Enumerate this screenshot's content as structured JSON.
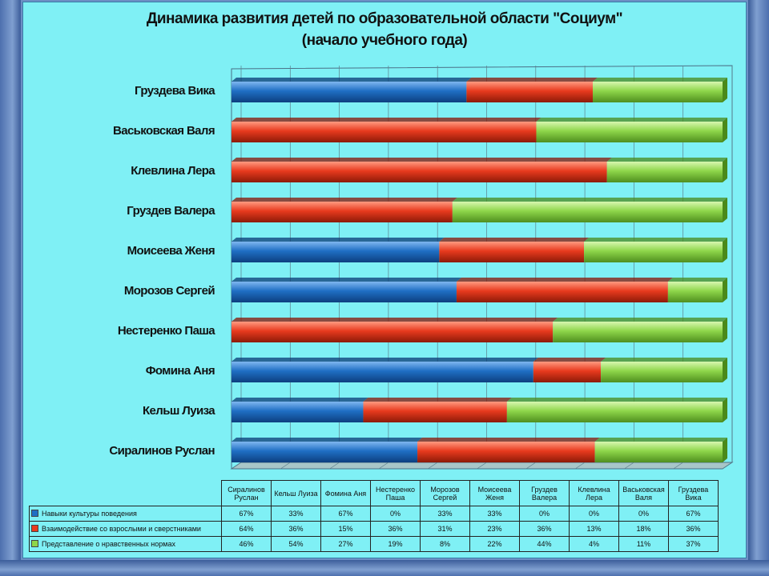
{
  "title": {
    "line1": "Динамика развития детей по образовательной области \"Социум\"",
    "line2": "(начало учебного года)"
  },
  "chart_data": {
    "type": "bar",
    "orientation": "horizontal",
    "stacked": "percent",
    "style": "3d",
    "categories": [
      "Сиралинов Руслан",
      "Кельш Луиза",
      "Фомина Аня",
      "Нестеренко Паша",
      "Морозов Сергей",
      "Моисеева Женя",
      "Груздев Валера",
      "Клевлина Лера",
      "Васьковская Валя",
      "Груздева  Вика"
    ],
    "category_labels": [
      "Сиралинов Руслан",
      "Кельш Луиза",
      "Фомина Аня",
      "Нестеренко Паша",
      "Морозов Сергей",
      "Моисеева Женя",
      "Груздев Валера",
      "Клевлина Лера",
      "Васьковская Валя",
      "Груздева  Вика"
    ],
    "table_headers": [
      "Сиралинов Руслан",
      "Кельш Луиза",
      "Фомина Аня",
      "Нестеренко Паша",
      "Морозов Сергей",
      "Моисеева Женя",
      "Груздев Валера",
      "Клевлина Лера",
      "Васьковская Валя",
      "Груздева Вика"
    ],
    "series": [
      {
        "name": "Навыки культуры поведения",
        "color": "#1f6fc4",
        "values": [
          67,
          33,
          67,
          0,
          33,
          33,
          0,
          0,
          0,
          67
        ],
        "labels": [
          "67%",
          "33%",
          "67%",
          "0%",
          "33%",
          "33%",
          "0%",
          "0%",
          "0%",
          "67%"
        ]
      },
      {
        "name": "Взаимодействие со взрослыми и сверстниками",
        "color": "#e83a1e",
        "values": [
          64,
          36,
          15,
          36,
          31,
          23,
          36,
          13,
          18,
          36
        ],
        "labels": [
          "64%",
          "36%",
          "15%",
          "36%",
          "31%",
          "23%",
          "36%",
          "13%",
          "18%",
          "36%"
        ]
      },
      {
        "name": "Представление о нравственных нормах",
        "color": "#8ed64a",
        "values": [
          46,
          54,
          27,
          19,
          8,
          22,
          44,
          4,
          11,
          37
        ],
        "labels": [
          "46%",
          "54%",
          "27%",
          "19%",
          "8%",
          "22%",
          "44%",
          "4%",
          "11%",
          "37%"
        ]
      }
    ],
    "legend": "data-table",
    "grid": true
  }
}
